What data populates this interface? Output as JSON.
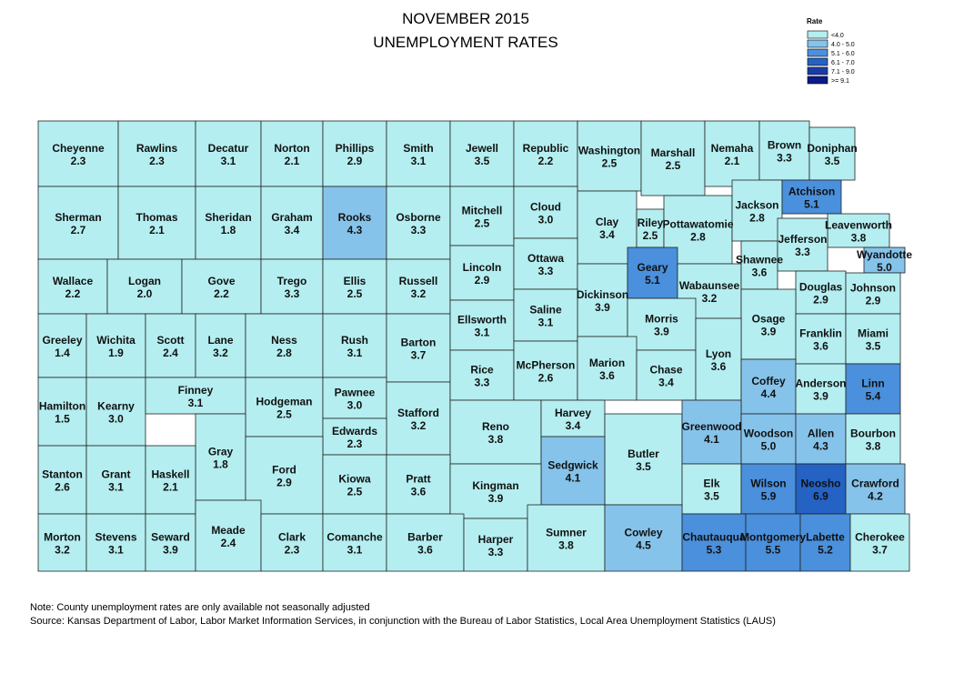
{
  "title": [
    "NOVEMBER 2015",
    "UNEMPLOYMENT RATES"
  ],
  "legend": {
    "title": "Rate",
    "items": [
      {
        "label": "<4.0",
        "color": "#b4eef0"
      },
      {
        "label": "4.0 - 5.0",
        "color": "#86c3ea"
      },
      {
        "label": "5.1 - 6.0",
        "color": "#4a90dc"
      },
      {
        "label": "6.1 - 7.0",
        "color": "#2462c4"
      },
      {
        "label": "7.1 - 9.0",
        "color": "#1a3ca8"
      },
      {
        "label": ">= 9.1",
        "color": "#0c1a8a"
      }
    ]
  },
  "counties": [
    {
      "name": "Cheyenne",
      "rate": "2.3",
      "color": "#b4eef0"
    },
    {
      "name": "Rawlins",
      "rate": "2.3",
      "color": "#b4eef0"
    },
    {
      "name": "Decatur",
      "rate": "3.1",
      "color": "#b4eef0"
    },
    {
      "name": "Norton",
      "rate": "2.1",
      "color": "#b4eef0"
    },
    {
      "name": "Phillips",
      "rate": "2.9",
      "color": "#b4eef0"
    },
    {
      "name": "Smith",
      "rate": "3.1",
      "color": "#b4eef0"
    },
    {
      "name": "Jewell",
      "rate": "3.5",
      "color": "#b4eef0"
    },
    {
      "name": "Republic",
      "rate": "2.2",
      "color": "#b4eef0"
    },
    {
      "name": "Washington",
      "rate": "2.5",
      "color": "#b4eef0"
    },
    {
      "name": "Marshall",
      "rate": "2.5",
      "color": "#b4eef0"
    },
    {
      "name": "Nemaha",
      "rate": "2.1",
      "color": "#b4eef0"
    },
    {
      "name": "Brown",
      "rate": "3.3",
      "color": "#b4eef0"
    },
    {
      "name": "Doniphan",
      "rate": "3.5",
      "color": "#b4eef0"
    },
    {
      "name": "Sherman",
      "rate": "2.7",
      "color": "#b4eef0"
    },
    {
      "name": "Thomas",
      "rate": "2.1",
      "color": "#b4eef0"
    },
    {
      "name": "Sheridan",
      "rate": "1.8",
      "color": "#b4eef0"
    },
    {
      "name": "Graham",
      "rate": "3.4",
      "color": "#b4eef0"
    },
    {
      "name": "Rooks",
      "rate": "4.3",
      "color": "#86c3ea"
    },
    {
      "name": "Osborne",
      "rate": "3.3",
      "color": "#b4eef0"
    },
    {
      "name": "Mitchell",
      "rate": "2.5",
      "color": "#b4eef0"
    },
    {
      "name": "Cloud",
      "rate": "3.0",
      "color": "#b4eef0"
    },
    {
      "name": "Clay",
      "rate": "3.4",
      "color": "#b4eef0"
    },
    {
      "name": "Riley",
      "rate": "2.5",
      "color": "#b4eef0"
    },
    {
      "name": "Pottawatomie",
      "rate": "2.8",
      "color": "#b4eef0"
    },
    {
      "name": "Jackson",
      "rate": "2.8",
      "color": "#b4eef0"
    },
    {
      "name": "Atchison",
      "rate": "5.1",
      "color": "#4a90dc"
    },
    {
      "name": "Leavenworth",
      "rate": "3.8",
      "color": "#b4eef0"
    },
    {
      "name": "Wallace",
      "rate": "2.2",
      "color": "#b4eef0"
    },
    {
      "name": "Logan",
      "rate": "2.0",
      "color": "#b4eef0"
    },
    {
      "name": "Gove",
      "rate": "2.2",
      "color": "#b4eef0"
    },
    {
      "name": "Trego",
      "rate": "3.3",
      "color": "#b4eef0"
    },
    {
      "name": "Ellis",
      "rate": "2.5",
      "color": "#b4eef0"
    },
    {
      "name": "Russell",
      "rate": "3.2",
      "color": "#b4eef0"
    },
    {
      "name": "Lincoln",
      "rate": "2.9",
      "color": "#b4eef0"
    },
    {
      "name": "Ottawa",
      "rate": "3.3",
      "color": "#b4eef0"
    },
    {
      "name": "Dickinson",
      "rate": "3.9",
      "color": "#b4eef0"
    },
    {
      "name": "Geary",
      "rate": "5.1",
      "color": "#4a90dc"
    },
    {
      "name": "Wabaunsee",
      "rate": "3.2",
      "color": "#b4eef0"
    },
    {
      "name": "Shawnee",
      "rate": "3.6",
      "color": "#b4eef0"
    },
    {
      "name": "Jefferson",
      "rate": "3.3",
      "color": "#b4eef0"
    },
    {
      "name": "Wyandotte",
      "rate": "5.0",
      "color": "#86c3ea"
    },
    {
      "name": "Douglas",
      "rate": "2.9",
      "color": "#b4eef0"
    },
    {
      "name": "Johnson",
      "rate": "2.9",
      "color": "#b4eef0"
    },
    {
      "name": "Greeley",
      "rate": "1.4",
      "color": "#b4eef0"
    },
    {
      "name": "Wichita",
      "rate": "1.9",
      "color": "#b4eef0"
    },
    {
      "name": "Scott",
      "rate": "2.4",
      "color": "#b4eef0"
    },
    {
      "name": "Lane",
      "rate": "3.2",
      "color": "#b4eef0"
    },
    {
      "name": "Ness",
      "rate": "2.8",
      "color": "#b4eef0"
    },
    {
      "name": "Rush",
      "rate": "3.1",
      "color": "#b4eef0"
    },
    {
      "name": "Barton",
      "rate": "3.7",
      "color": "#b4eef0"
    },
    {
      "name": "Ellsworth",
      "rate": "3.1",
      "color": "#b4eef0"
    },
    {
      "name": "Saline",
      "rate": "3.1",
      "color": "#b4eef0"
    },
    {
      "name": "Morris",
      "rate": "3.9",
      "color": "#b4eef0"
    },
    {
      "name": "Osage",
      "rate": "3.9",
      "color": "#b4eef0"
    },
    {
      "name": "Franklin",
      "rate": "3.6",
      "color": "#b4eef0"
    },
    {
      "name": "Miami",
      "rate": "3.5",
      "color": "#b4eef0"
    },
    {
      "name": "Hamilton",
      "rate": "1.5",
      "color": "#b4eef0"
    },
    {
      "name": "Kearny",
      "rate": "3.0",
      "color": "#b4eef0"
    },
    {
      "name": "Finney",
      "rate": "3.1",
      "color": "#b4eef0"
    },
    {
      "name": "Hodgeman",
      "rate": "2.5",
      "color": "#b4eef0"
    },
    {
      "name": "Pawnee",
      "rate": "3.0",
      "color": "#b4eef0"
    },
    {
      "name": "Stafford",
      "rate": "3.2",
      "color": "#b4eef0"
    },
    {
      "name": "Rice",
      "rate": "3.3",
      "color": "#b4eef0"
    },
    {
      "name": "McPherson",
      "rate": "2.6",
      "color": "#b4eef0"
    },
    {
      "name": "Marion",
      "rate": "3.6",
      "color": "#b4eef0"
    },
    {
      "name": "Chase",
      "rate": "3.4",
      "color": "#b4eef0"
    },
    {
      "name": "Lyon",
      "rate": "3.6",
      "color": "#b4eef0"
    },
    {
      "name": "Coffey",
      "rate": "4.4",
      "color": "#86c3ea"
    },
    {
      "name": "Anderson",
      "rate": "3.9",
      "color": "#b4eef0"
    },
    {
      "name": "Linn",
      "rate": "5.4",
      "color": "#4a90dc"
    },
    {
      "name": "Gray",
      "rate": "1.8",
      "color": "#b4eef0"
    },
    {
      "name": "Edwards",
      "rate": "2.3",
      "color": "#b4eef0"
    },
    {
      "name": "Ford",
      "rate": "2.9",
      "color": "#b4eef0"
    },
    {
      "name": "Reno",
      "rate": "3.8",
      "color": "#b4eef0"
    },
    {
      "name": "Harvey",
      "rate": "3.4",
      "color": "#b4eef0"
    },
    {
      "name": "Butler",
      "rate": "3.5",
      "color": "#b4eef0"
    },
    {
      "name": "Greenwood",
      "rate": "4.1",
      "color": "#86c3ea"
    },
    {
      "name": "Woodson",
      "rate": "5.0",
      "color": "#86c3ea"
    },
    {
      "name": "Allen",
      "rate": "4.3",
      "color": "#86c3ea"
    },
    {
      "name": "Bourbon",
      "rate": "3.8",
      "color": "#b4eef0"
    },
    {
      "name": "Kiowa",
      "rate": "2.5",
      "color": "#b4eef0"
    },
    {
      "name": "Pratt",
      "rate": "3.6",
      "color": "#b4eef0"
    },
    {
      "name": "Sedgwick",
      "rate": "4.1",
      "color": "#86c3ea"
    },
    {
      "name": "Kingman",
      "rate": "3.9",
      "color": "#b4eef0"
    },
    {
      "name": "Stanton",
      "rate": "2.6",
      "color": "#b4eef0"
    },
    {
      "name": "Grant",
      "rate": "3.1",
      "color": "#b4eef0"
    },
    {
      "name": "Haskell",
      "rate": "2.1",
      "color": "#b4eef0"
    },
    {
      "name": "Elk",
      "rate": "3.5",
      "color": "#b4eef0"
    },
    {
      "name": "Wilson",
      "rate": "5.9",
      "color": "#4a90dc"
    },
    {
      "name": "Neosho",
      "rate": "6.9",
      "color": "#2462c4"
    },
    {
      "name": "Crawford",
      "rate": "4.2",
      "color": "#86c3ea"
    },
    {
      "name": "Morton",
      "rate": "3.2",
      "color": "#b4eef0"
    },
    {
      "name": "Stevens",
      "rate": "3.1",
      "color": "#b4eef0"
    },
    {
      "name": "Seward",
      "rate": "3.9",
      "color": "#b4eef0"
    },
    {
      "name": "Meade",
      "rate": "2.4",
      "color": "#b4eef0"
    },
    {
      "name": "Clark",
      "rate": "2.3",
      "color": "#b4eef0"
    },
    {
      "name": "Comanche",
      "rate": "3.1",
      "color": "#b4eef0"
    },
    {
      "name": "Barber",
      "rate": "3.6",
      "color": "#b4eef0"
    },
    {
      "name": "Harper",
      "rate": "3.3",
      "color": "#b4eef0"
    },
    {
      "name": "Sumner",
      "rate": "3.8",
      "color": "#b4eef0"
    },
    {
      "name": "Cowley",
      "rate": "4.5",
      "color": "#86c3ea"
    },
    {
      "name": "Chautauqua",
      "rate": "5.3",
      "color": "#4a90dc"
    },
    {
      "name": "Montgomery",
      "rate": "5.5",
      "color": "#4a90dc"
    },
    {
      "name": "Labette",
      "rate": "5.2",
      "color": "#4a90dc"
    },
    {
      "name": "Cherokee",
      "rate": "3.7",
      "color": "#b4eef0"
    }
  ],
  "notes": [
    "Note: County unemployment rates are only available not seasonally adjusted",
    "Source: Kansas Department of Labor, Labor Market Information Services, in conjunction with the Bureau of Labor Statistics, Local Area Unemployment Statistics (LAUS)"
  ]
}
